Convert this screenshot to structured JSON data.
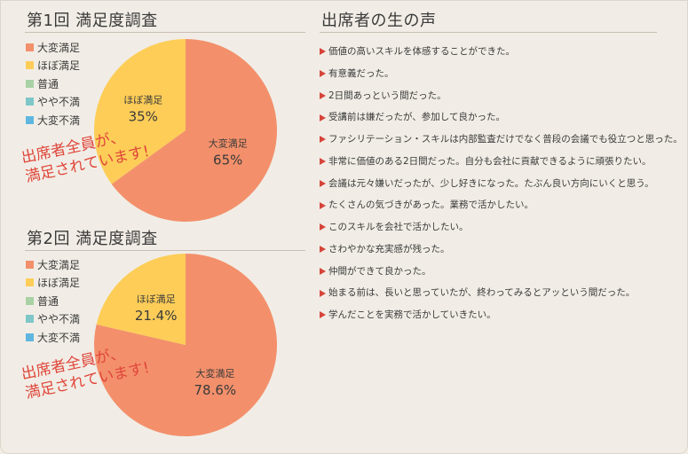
{
  "colors": {
    "very_satisfied": "#f3906b",
    "mostly_satisfied": "#fdcd58",
    "neutral": "#a8d2a5",
    "slightly_unsatisfied": "#7ec6c8",
    "very_unsatisfied": "#5fb7e0"
  },
  "survey1": {
    "title": "第1回 満足度調査",
    "stamp_line1": "出席者全員が、",
    "stamp_line2": "満足されています!"
  },
  "survey2": {
    "title": "第2回 満足度調査",
    "stamp_line1": "出席者全員が、",
    "stamp_line2": "満足されています!"
  },
  "comments_section": {
    "title": "出席者の生の声",
    "items": [
      "価値の高いスキルを体感することができた。",
      "有意義だった。",
      "2日間あっという間だった。",
      "受講前は嫌だったが、参加して良かった。",
      "ファシリテーション・スキルは内部監査だけでなく普段の会議でも役立つと思った。",
      "非常に価値のある2日間だった。自分も会社に貢献できるように頑張りたい。",
      "会議は元々嫌いだったが、少し好きになった。たぶん良い方向にいくと思う。",
      "たくさんの気づきがあった。業務で活かしたい。",
      "このスキルを会社で活かしたい。",
      "さわやかな充実感が残った。",
      "仲間ができて良かった。",
      "始まる前は、長いと思っていたが、終わってみるとアッという間だった。",
      "学んだことを実務で活かしていきたい。"
    ]
  },
  "chart_data": [
    {
      "type": "pie",
      "title": "第1回 満足度調査",
      "legend": [
        "大変満足",
        "ほぼ満足",
        "普通",
        "やや不満",
        "大変不満"
      ],
      "legend_position": "left",
      "slices": [
        {
          "label": "大変満足",
          "value": 65,
          "display": "65%"
        },
        {
          "label": "ほぼ満足",
          "value": 35,
          "display": "35%"
        },
        {
          "label": "普通",
          "value": 0
        },
        {
          "label": "やや不満",
          "value": 0
        },
        {
          "label": "大変不満",
          "value": 0
        }
      ]
    },
    {
      "type": "pie",
      "title": "第2回 満足度調査",
      "legend": [
        "大変満足",
        "ほぼ満足",
        "普通",
        "やや不満",
        "大変不満"
      ],
      "legend_position": "left",
      "slices": [
        {
          "label": "大変満足",
          "value": 78.6,
          "display": "78.6%"
        },
        {
          "label": "ほぼ満足",
          "value": 21.4,
          "display": "21.4%"
        },
        {
          "label": "普通",
          "value": 0
        },
        {
          "label": "やや不満",
          "value": 0
        },
        {
          "label": "大変不満",
          "value": 0
        }
      ]
    }
  ]
}
